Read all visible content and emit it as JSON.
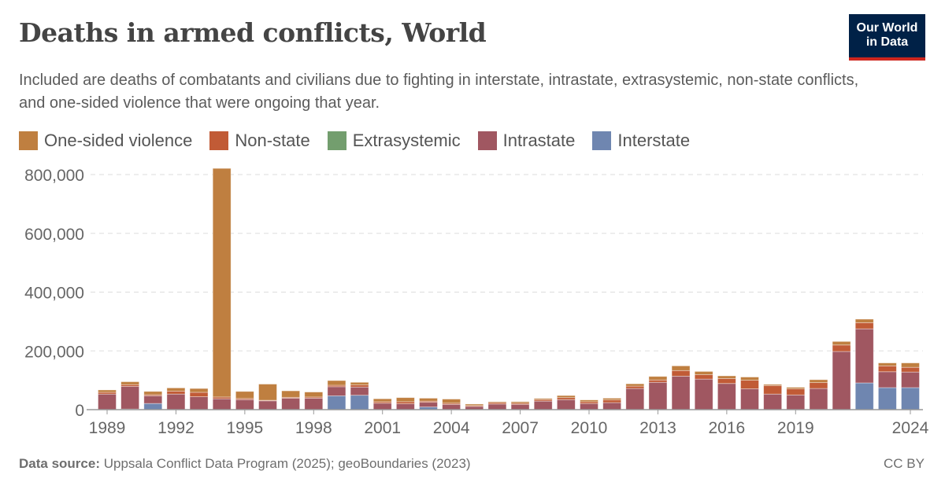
{
  "header": {
    "title": "Deaths in armed conflicts, World",
    "subtitle": "Included are deaths of combatants and civilians due to fighting in interstate, intrastate, extrasystemic, non-state conflicts, and one-sided violence that were ongoing that year.",
    "logo_text": "Our World in Data"
  },
  "footer": {
    "source_label": "Data source:",
    "source_text": " Uppsala Conflict Data Program (2025); geoBoundaries (2023)",
    "license": "CC BY"
  },
  "chart_data": {
    "type": "bar",
    "stacked": true,
    "title": "Deaths in armed conflicts, World",
    "xlabel": "",
    "ylabel": "",
    "ylim": [
      0,
      800000
    ],
    "grid": "horizontal dashed",
    "legend": "top",
    "y_ticks": [
      "0",
      "200,000",
      "400,000",
      "600,000",
      "800,000"
    ],
    "x_ticks": [
      "1989",
      "1992",
      "1995",
      "1998",
      "2001",
      "2004",
      "2007",
      "2010",
      "2013",
      "2016",
      "2019",
      "2024"
    ],
    "categories": [
      1989,
      1990,
      1991,
      1992,
      1993,
      1994,
      1995,
      1996,
      1997,
      1998,
      1999,
      2000,
      2001,
      2002,
      2003,
      2004,
      2005,
      2006,
      2007,
      2008,
      2009,
      2010,
      2011,
      2012,
      2013,
      2014,
      2015,
      2016,
      2017,
      2018,
      2019,
      2020,
      2021,
      2022,
      2023,
      2024
    ],
    "series": [
      {
        "name": "Interstate",
        "color": "#6F86B0",
        "values": [
          0,
          2000,
          21000,
          0,
          0,
          0,
          0,
          0,
          0,
          0,
          47000,
          49000,
          0,
          0,
          9000,
          0,
          0,
          0,
          0,
          0,
          0,
          0,
          0,
          0,
          0,
          0,
          0,
          0,
          0,
          0,
          0,
          1000,
          0,
          91000,
          75000,
          75000
        ]
      },
      {
        "name": "Intrastate",
        "color": "#A05761",
        "values": [
          53000,
          77000,
          26000,
          53000,
          44000,
          37000,
          34000,
          30000,
          39000,
          39000,
          31000,
          28000,
          22000,
          20000,
          16000,
          18000,
          11000,
          19000,
          18000,
          29000,
          34000,
          21000,
          24000,
          72000,
          93000,
          114000,
          104000,
          89000,
          71000,
          53000,
          50000,
          71000,
          198000,
          184000,
          54000,
          53000
        ]
      },
      {
        "name": "Extrasystemic",
        "color": "#739E6E",
        "values": [
          0,
          0,
          0,
          0,
          0,
          0,
          0,
          0,
          0,
          0,
          0,
          0,
          0,
          0,
          0,
          0,
          0,
          0,
          0,
          0,
          0,
          0,
          0,
          0,
          0,
          0,
          0,
          0,
          0,
          0,
          0,
          0,
          0,
          0,
          0,
          0
        ]
      },
      {
        "name": "Non-state",
        "color": "#C15B36",
        "values": [
          6000,
          6000,
          4000,
          10000,
          15000,
          6000,
          4000,
          2000,
          3000,
          4000,
          5000,
          7000,
          5000,
          7000,
          4000,
          4000,
          3000,
          5000,
          4000,
          5000,
          7000,
          6000,
          9000,
          8000,
          8000,
          19000,
          15000,
          17000,
          29000,
          29000,
          21000,
          20000,
          22000,
          21000,
          20000,
          16000
        ]
      },
      {
        "name": "One-sided violence",
        "color": "#BF7F40",
        "values": [
          8000,
          10000,
          11000,
          11000,
          13000,
          778000,
          24000,
          55000,
          22000,
          17000,
          16000,
          9000,
          10000,
          14000,
          10000,
          14000,
          5000,
          3000,
          5000,
          4000,
          7000,
          6000,
          6000,
          8000,
          12000,
          16000,
          11000,
          9000,
          11000,
          4000,
          5000,
          10000,
          12000,
          12000,
          10000,
          15000
        ]
      }
    ]
  }
}
